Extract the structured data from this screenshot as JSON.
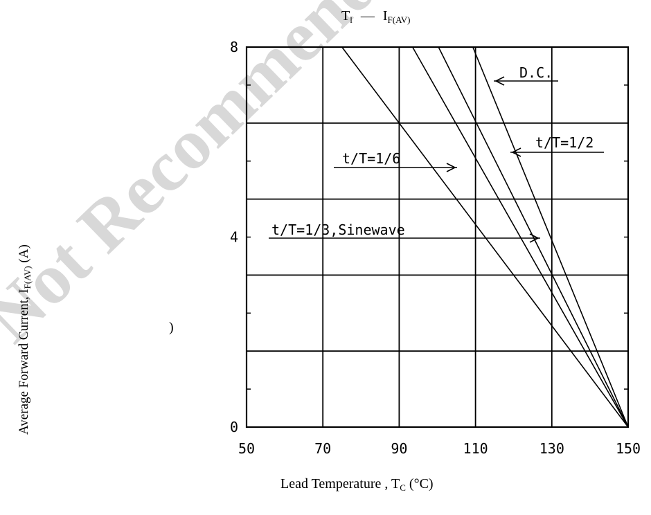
{
  "watermark": "Not Recommended",
  "chart_data": {
    "type": "line",
    "title_main": "T",
    "title_main_sub": "l",
    "title_dash": "—",
    "title_var": "I",
    "title_var_sub": "F(AV)",
    "xlabel_main": "Lead Temperature , T",
    "xlabel_sub": "C",
    "xlabel_unit": " (°C)",
    "ylabel_main": "Average Forward Current, I",
    "ylabel_sub": "F(AV)",
    "ylabel_unit": " (A)",
    "xlim": [
      50,
      150
    ],
    "ylim": [
      0,
      8
    ],
    "xticks": [
      50,
      70,
      90,
      110,
      130,
      150
    ],
    "yticks": [
      0,
      4,
      8
    ],
    "grid": true,
    "series": [
      {
        "name": "D.C.",
        "points": [
          [
            109.3,
            8
          ],
          [
            150,
            0
          ]
        ]
      },
      {
        "name": "t/T=1/2",
        "points": [
          [
            100.3,
            8
          ],
          [
            150,
            0
          ]
        ]
      },
      {
        "name": "t/T=1/3,Sinewave",
        "points": [
          [
            93.5,
            8
          ],
          [
            150,
            0
          ]
        ]
      },
      {
        "name": "t/T=1/6",
        "points": [
          [
            75,
            8
          ],
          [
            150,
            0
          ]
        ]
      }
    ],
    "annotations": [
      {
        "label": "D.C.",
        "series": "D.C."
      },
      {
        "label": "t/T=1/2",
        "series": "t/T=1/2"
      },
      {
        "label": "t/T=1/6",
        "series": "t/T=1/6"
      },
      {
        "label": "t/T=1/3,Sinewave",
        "series": "t/T=1/3,Sinewave"
      }
    ]
  }
}
